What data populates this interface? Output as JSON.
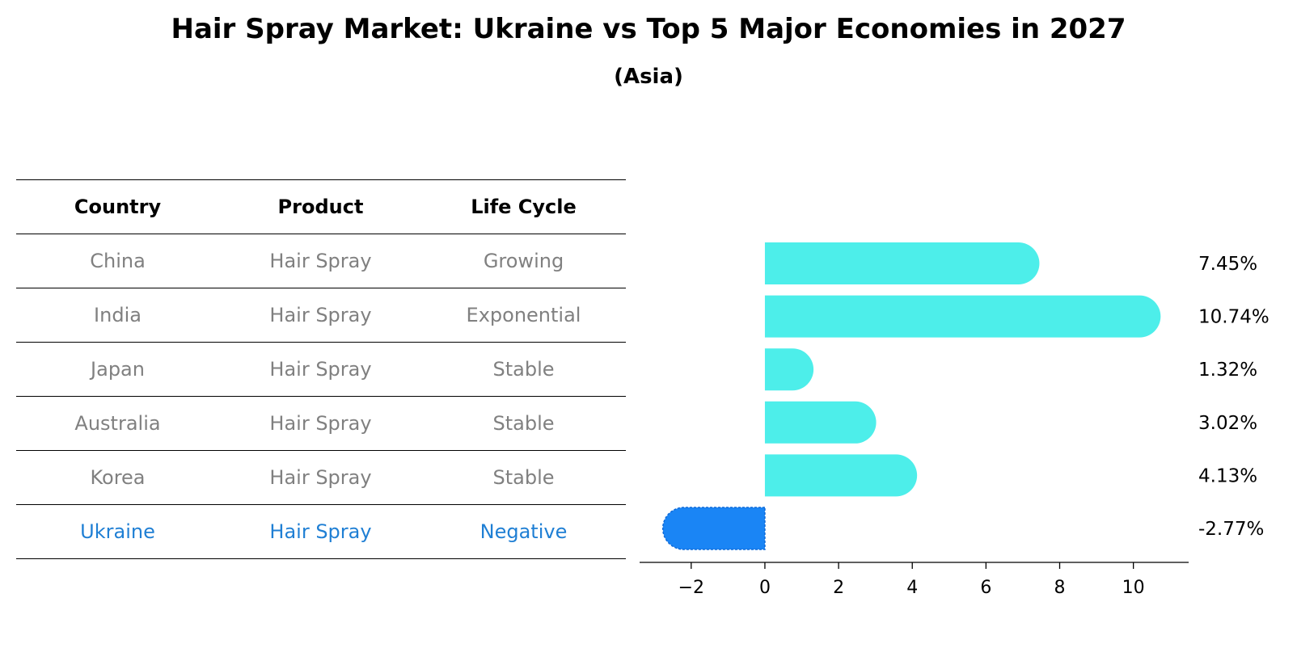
{
  "title": "Hair Spray Market: Ukraine vs Top 5 Major Economies in 2027",
  "subtitle": "(Asia)",
  "table": {
    "headers": [
      "Country",
      "Product",
      "Life Cycle"
    ],
    "rows": [
      {
        "country": "China",
        "product": "Hair Spray",
        "life_cycle": "Growing"
      },
      {
        "country": "India",
        "product": "Hair Spray",
        "life_cycle": "Exponential"
      },
      {
        "country": "Japan",
        "product": "Hair Spray",
        "life_cycle": "Stable"
      },
      {
        "country": "Australia",
        "product": "Hair Spray",
        "life_cycle": "Stable"
      },
      {
        "country": "Korea",
        "product": "Hair Spray",
        "life_cycle": "Stable"
      },
      {
        "country": "Ukraine",
        "product": "Hair Spray",
        "life_cycle": "Negative"
      }
    ]
  },
  "colors": {
    "positive_bar": "#4deeea",
    "negative_bar": "#1a85f5",
    "highlight_text": "#1f7fd4",
    "muted_text": "#808080"
  },
  "chart_data": {
    "type": "bar",
    "orientation": "horizontal",
    "categories": [
      "China",
      "India",
      "Japan",
      "Australia",
      "Korea",
      "Ukraine"
    ],
    "values": [
      7.45,
      10.74,
      1.32,
      3.02,
      4.13,
      -2.77
    ],
    "value_labels": [
      "7.45%",
      "10.74%",
      "1.32%",
      "3.02%",
      "4.13%",
      "-2.77%"
    ],
    "xlim": [
      -3.4,
      11.5
    ],
    "xticks": [
      -2,
      0,
      2,
      4,
      6,
      8,
      10
    ],
    "xtick_labels": [
      "−2",
      "0",
      "2",
      "4",
      "6",
      "8",
      "10"
    ],
    "grid": false
  }
}
